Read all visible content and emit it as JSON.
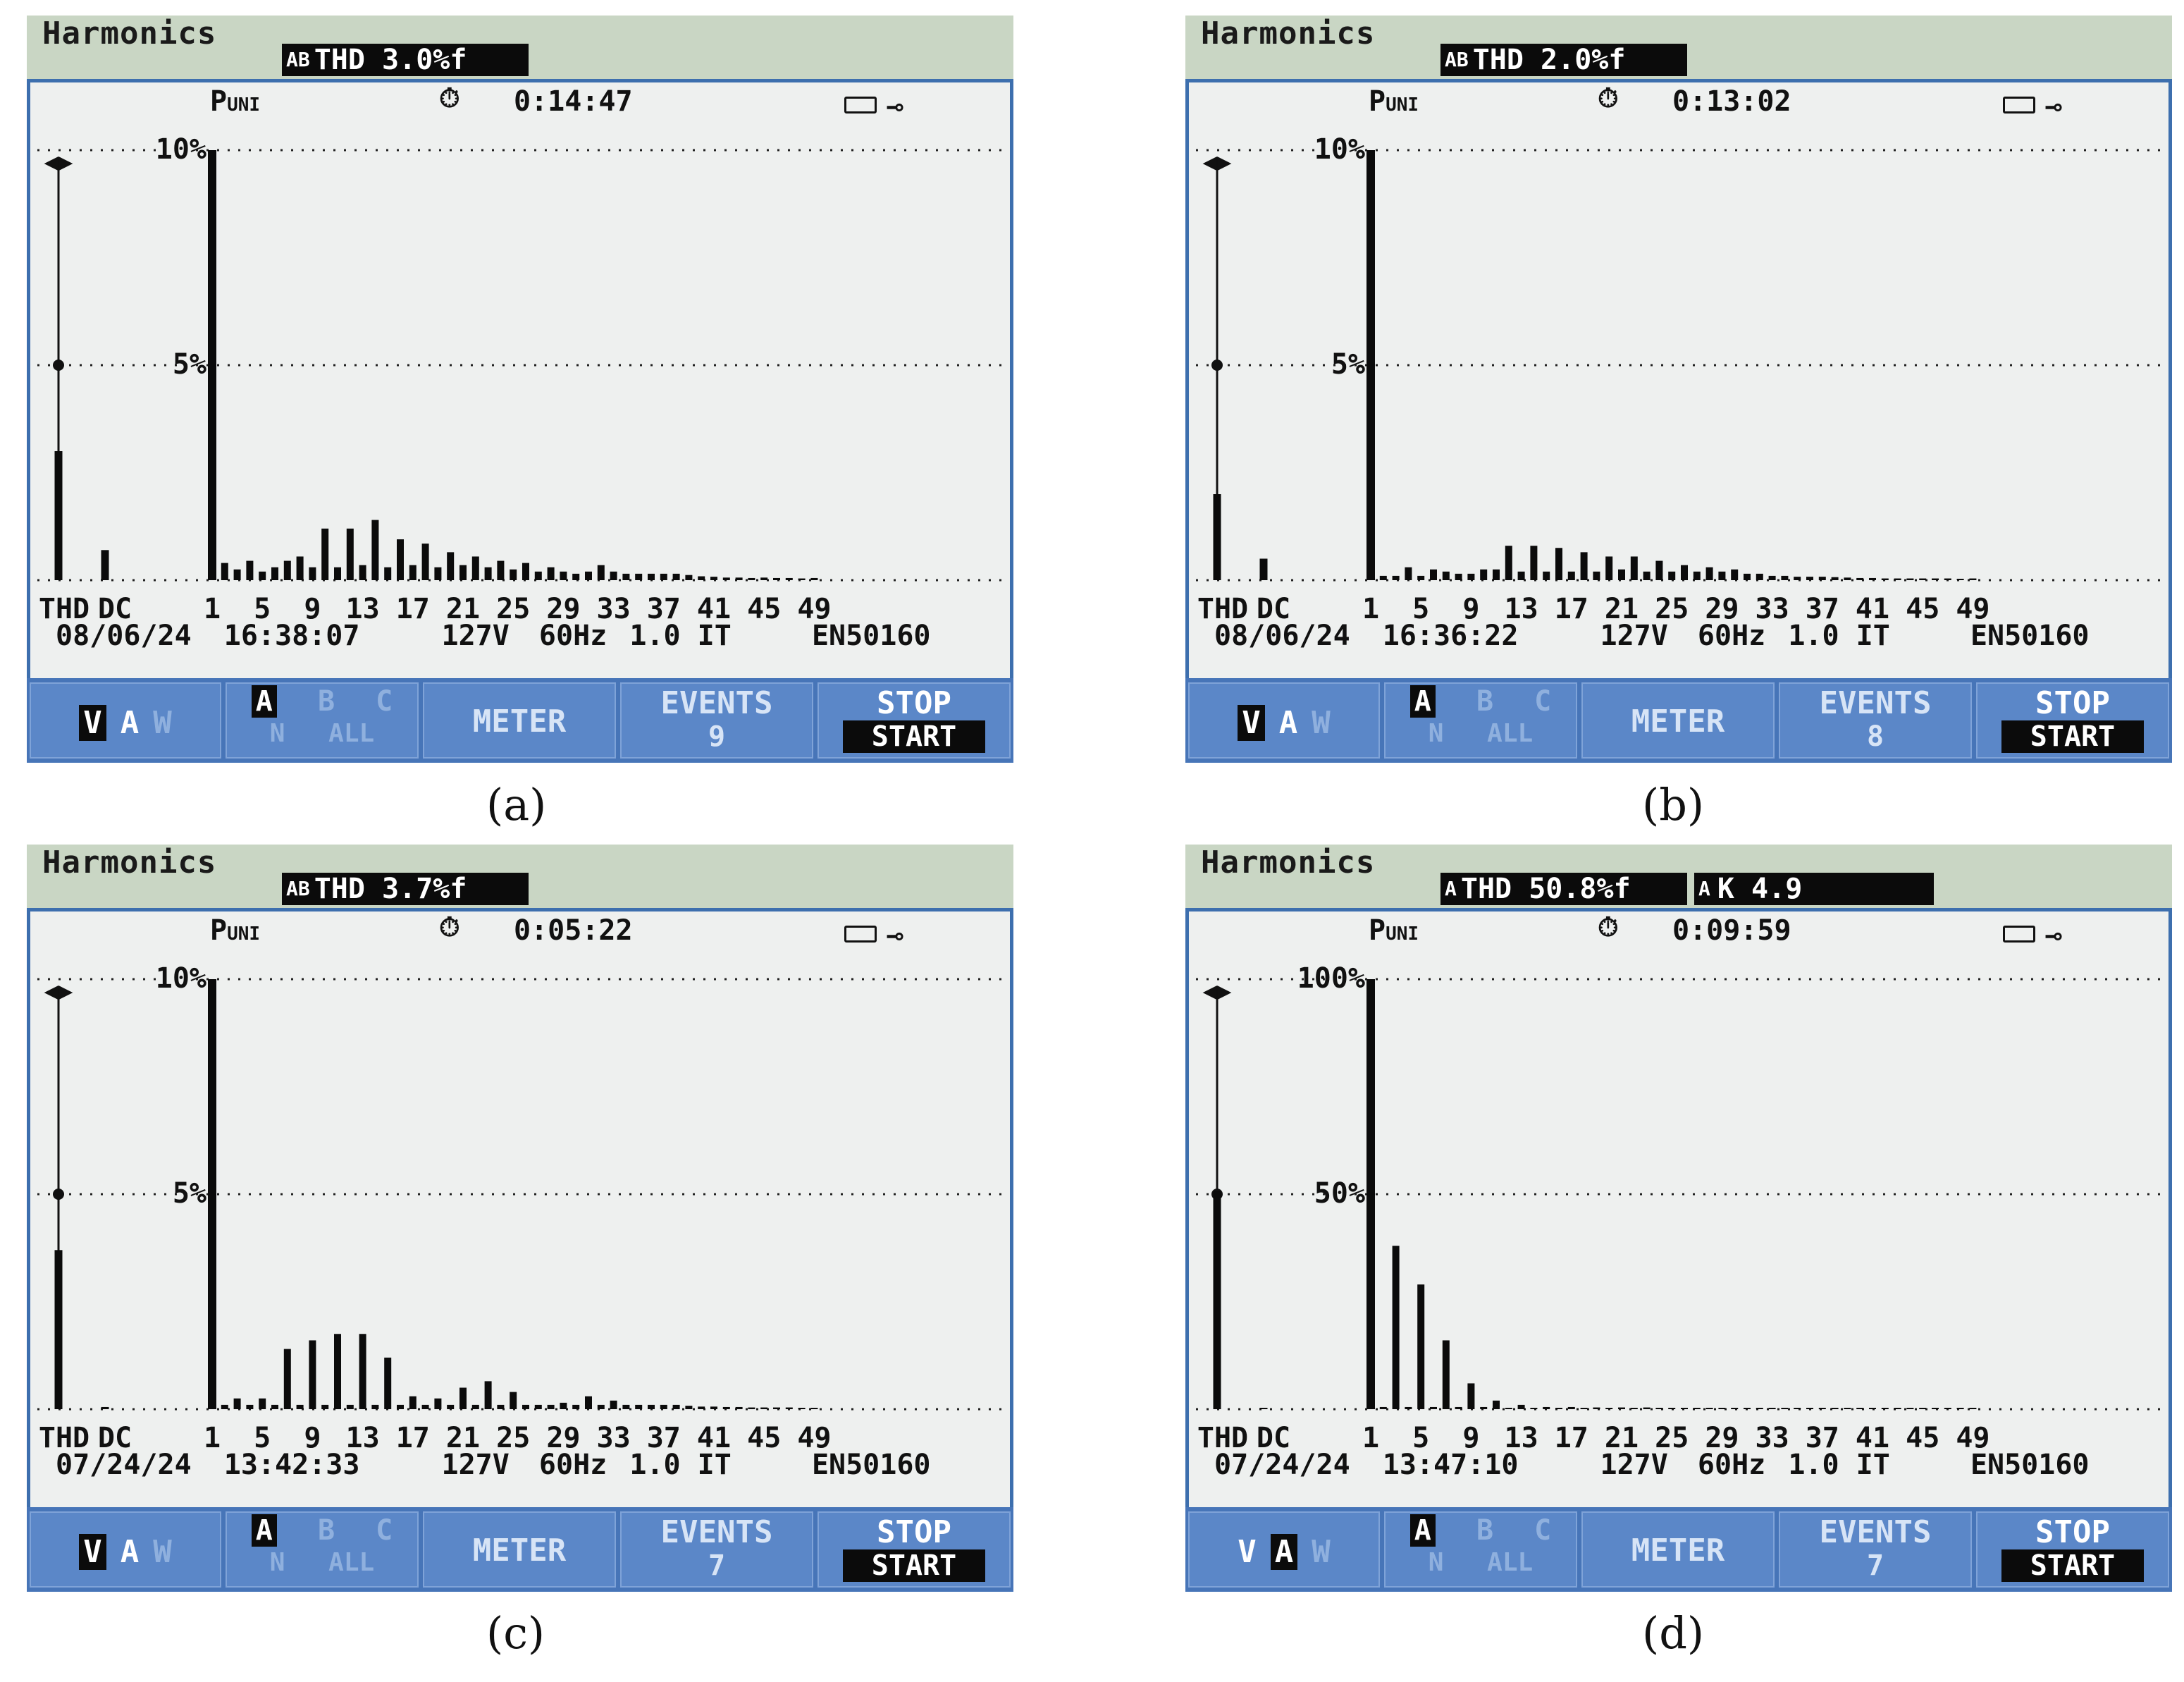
{
  "panels": [
    {
      "caption": "(a)",
      "title": "Harmonics",
      "thd_prefix": "AB",
      "thd_text": "THD    3.0%f",
      "k_text": "",
      "uni_label": "P",
      "uni_sub": "UNI",
      "timer": "0:14:47",
      "scale_top": "10%",
      "scale_mid": "5%",
      "ticks": [
        "THD",
        "DC",
        "1",
        "5",
        "9",
        "13",
        "17",
        "21",
        "25",
        "29",
        "33",
        "37",
        "41",
        "45",
        "49"
      ],
      "status_date": "08/06/24",
      "status_time": "16:38:07",
      "status_volt": "127V",
      "status_freq": "60Hz",
      "status_phase": "1.0 IT",
      "status_std": "EN50160",
      "meter": "METER",
      "events_label": "EVENTS",
      "events_count": "9",
      "stop": "STOP",
      "start": "START",
      "vaw": [
        "V",
        "A",
        "W"
      ],
      "vaw_selected": 0,
      "phase_top": [
        "A",
        "B",
        "C"
      ],
      "phase_bottom": [
        "N",
        "ALL"
      ],
      "bar_values": {
        "thd": 30.0,
        "dc": 7.0,
        "h": [
          100,
          4,
          2.5,
          4.5,
          2,
          3,
          4.5,
          5.5,
          3,
          12,
          3,
          12,
          3.5,
          14,
          3,
          9.5,
          3.5,
          8.5,
          3,
          6.5,
          3.5,
          5.5,
          3,
          4.5,
          2.5,
          4,
          2,
          3,
          2,
          1.5,
          2,
          3.5,
          2,
          1.5,
          1.5,
          1.5,
          1.5,
          1.5,
          1.2,
          0.9,
          0.8,
          0.6,
          0.6,
          0.5,
          0.6,
          0.5,
          0.5,
          0.4,
          0.5
        ]
      }
    },
    {
      "caption": "(b)",
      "title": "Harmonics",
      "thd_prefix": "AB",
      "thd_text": "THD    2.0%f",
      "k_text": "",
      "uni_label": "P",
      "uni_sub": "UNI",
      "timer": "0:13:02",
      "scale_top": "10%",
      "scale_mid": "5%",
      "ticks": [
        "THD",
        "DC",
        "1",
        "5",
        "9",
        "13",
        "17",
        "21",
        "25",
        "29",
        "33",
        "37",
        "41",
        "45",
        "49"
      ],
      "status_date": "08/06/24",
      "status_time": "16:36:22",
      "status_volt": "127V",
      "status_freq": "60Hz",
      "status_phase": "1.0 IT",
      "status_std": "EN50160",
      "meter": "METER",
      "events_label": "EVENTS",
      "events_count": "8",
      "stop": "STOP",
      "start": "START",
      "vaw": [
        "V",
        "A",
        "W"
      ],
      "vaw_selected": 0,
      "phase_top": [
        "A",
        "B",
        "C"
      ],
      "phase_bottom": [
        "N",
        "ALL"
      ],
      "bar_values": {
        "thd": 20.0,
        "dc": 5.0,
        "h": [
          100,
          1,
          1,
          3,
          1,
          2.5,
          2,
          1.5,
          1.5,
          2.5,
          2.5,
          8,
          2,
          8,
          2,
          7.5,
          2,
          6.5,
          2,
          5.5,
          2.5,
          5.5,
          2,
          4.5,
          2,
          3.5,
          2,
          3,
          2,
          2.5,
          1.5,
          1.5,
          1,
          1,
          0.8,
          0.8,
          0.8,
          0.7,
          0.6,
          0.5,
          0.5,
          0.4,
          0.4,
          0.4,
          0.4,
          0.4,
          0.4,
          0.3,
          0.4
        ]
      }
    },
    {
      "caption": "(c)",
      "title": "Harmonics",
      "thd_prefix": "AB",
      "thd_text": "THD    3.7%f",
      "k_text": "",
      "uni_label": "P",
      "uni_sub": "UNI",
      "timer": "0:05:22",
      "scale_top": "10%",
      "scale_mid": "5%",
      "ticks": [
        "THD",
        "DC",
        "1",
        "5",
        "9",
        "13",
        "17",
        "21",
        "25",
        "29",
        "33",
        "37",
        "41",
        "45",
        "49"
      ],
      "status_date": "07/24/24",
      "status_time": "13:42:33",
      "status_volt": "127V",
      "status_freq": "60Hz",
      "status_phase": "1.0 IT",
      "status_std": "EN50160",
      "meter": "METER",
      "events_label": "EVENTS",
      "events_count": "7",
      "stop": "STOP",
      "start": "START",
      "vaw": [
        "V",
        "A",
        "W"
      ],
      "vaw_selected": 0,
      "phase_top": [
        "A",
        "B",
        "C"
      ],
      "phase_bottom": [
        "N",
        "ALL"
      ],
      "bar_values": {
        "thd": 37.0,
        "dc": 0.5,
        "h": [
          100,
          1,
          2.5,
          1,
          2.5,
          1,
          14,
          1,
          16,
          1,
          17.5,
          1,
          17.5,
          1,
          12,
          1,
          3,
          1,
          2.5,
          1,
          5,
          1,
          6.5,
          1,
          4,
          1,
          1,
          1,
          1.5,
          1,
          3,
          1,
          2,
          1,
          1,
          1,
          1,
          1,
          0.8,
          0.6,
          0.6,
          0.5,
          0.5,
          0.4,
          0.4,
          0.4,
          0.4,
          0.3,
          0.3
        ]
      }
    },
    {
      "caption": "(d)",
      "title": "Harmonics",
      "thd_prefix": "A",
      "thd_text": "THD  50.8%f",
      "k_text": "K      4.9",
      "k_prefix": "A",
      "uni_label": "P",
      "uni_sub": "UNI",
      "timer": "0:09:59",
      "scale_top": "100%",
      "scale_mid": "50%",
      "ticks": [
        "THD",
        "DC",
        "1",
        "5",
        "9",
        "13",
        "17",
        "21",
        "25",
        "29",
        "33",
        "37",
        "41",
        "45",
        "49"
      ],
      "status_date": "07/24/24",
      "status_time": "13:47:10",
      "status_volt": "127V",
      "status_freq": "60Hz",
      "status_phase": "1.0 IT",
      "status_std": "EN50160",
      "meter": "METER",
      "events_label": "EVENTS",
      "events_count": "7",
      "stop": "STOP",
      "start": "START",
      "vaw": [
        "V",
        "A",
        "W"
      ],
      "vaw_selected": 1,
      "phase_top": [
        "A",
        "B",
        "C"
      ],
      "phase_bottom": [
        "N",
        "ALL"
      ],
      "bar_values": {
        "thd": 50.8,
        "dc": 0.3,
        "h": [
          100,
          0.5,
          38,
          0.5,
          29,
          0.5,
          16,
          0.5,
          6,
          0.5,
          2,
          0.3,
          1,
          0.3,
          0.5,
          0.3,
          0.5,
          0.3,
          0.4,
          0.3,
          0.4,
          0.3,
          0.4,
          0.3,
          0.3,
          0.3,
          0.3,
          0.3,
          0.3,
          0.3,
          0.3,
          0.3,
          0.3,
          0.3,
          0.3,
          0.3,
          0.3,
          0.3,
          0.3,
          0.3,
          0.3,
          0.3,
          0.3,
          0.3,
          0.3,
          0.3,
          0.3,
          0.3,
          0.3
        ]
      }
    }
  ]
}
